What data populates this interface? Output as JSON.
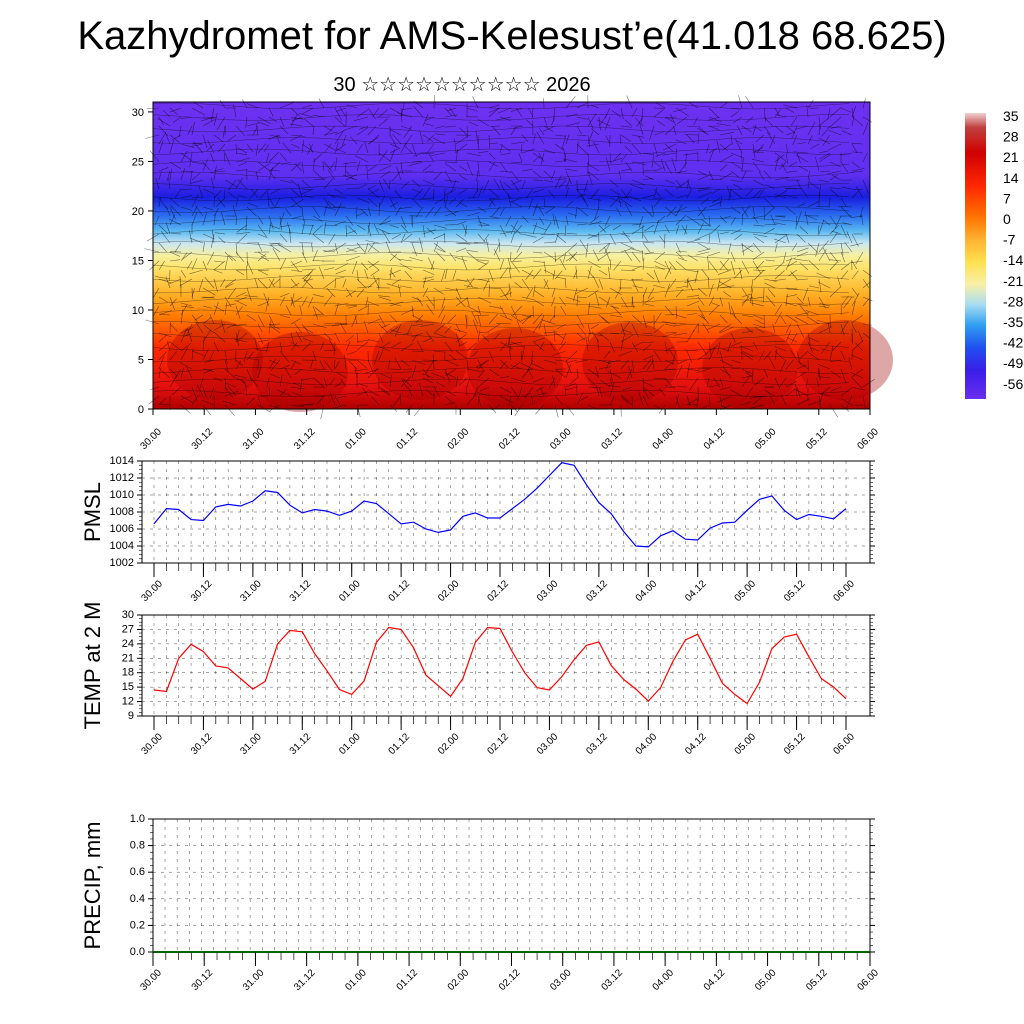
{
  "title": "Kazhydromet for AMS-Kelesust’e(41.018 68.625)",
  "subtitle": "30 ☆☆☆☆☆☆☆☆☆☆ 2026",
  "time_labels": [
    "30.00",
    "30.12",
    "31.00",
    "31.12",
    "01.00",
    "01.12",
    "02.00",
    "02.12",
    "03.00",
    "03.12",
    "04.00",
    "04.12",
    "05.00",
    "05.12",
    "06.00"
  ],
  "colors": {
    "pmsl": "#0000ff",
    "temp": "#ff0000",
    "precip": "#006400"
  },
  "chart_data": [
    {
      "type": "heatmap",
      "name": "vertical-section",
      "ylim": [
        0,
        31
      ],
      "yticks": [
        0,
        5,
        10,
        15,
        20,
        25,
        30
      ],
      "colorbar_labels": [
        "35",
        "28",
        "21",
        "14",
        "7",
        "0",
        "-7",
        "-14",
        "-21",
        "-28",
        "-35",
        "-42",
        "-49",
        "-56"
      ],
      "overlay": "wind vectors"
    },
    {
      "type": "line",
      "name": "pmsl",
      "ylabel": "PMSL",
      "ylim": [
        1002,
        1014
      ],
      "yticks": [
        1002,
        1004,
        1006,
        1008,
        1010,
        1012,
        1014
      ],
      "x_start": 0,
      "x_step": 0.25,
      "values": [
        1006.6,
        1008.4,
        1008.3,
        1007.1,
        1007.0,
        1008.6,
        1008.9,
        1008.7,
        1009.3,
        1010.5,
        1010.3,
        1008.8,
        1007.9,
        1008.3,
        1008.1,
        1007.6,
        1008.1,
        1009.3,
        1009.0,
        1007.8,
        1006.6,
        1006.8,
        1006.0,
        1005.6,
        1005.9,
        1007.5,
        1007.9,
        1007.3,
        1007.3,
        1008.4,
        1009.5,
        1010.8,
        1012.3,
        1013.8,
        1013.5,
        1011.2,
        1009.1,
        1007.8,
        1005.7,
        1004.0,
        1003.9,
        1005.2,
        1005.8,
        1004.8,
        1004.7,
        1006.1,
        1006.7,
        1006.8,
        1008.2,
        1009.5,
        1009.9,
        1008.2,
        1007.1,
        1007.7,
        1007.5,
        1007.2,
        1008.4
      ]
    },
    {
      "type": "line",
      "name": "temp",
      "ylabel": "TEMP at 2 M",
      "ylim": [
        9,
        30
      ],
      "yticks": [
        9,
        12,
        15,
        18,
        21,
        24,
        27,
        30
      ],
      "x_start": 0,
      "x_step": 0.25,
      "values": [
        14.4,
        14.1,
        21.0,
        23.9,
        22.4,
        19.4,
        19.0,
        16.8,
        14.6,
        16.2,
        24.0,
        26.8,
        26.5,
        22.0,
        18.4,
        14.5,
        13.5,
        16.3,
        24.3,
        27.4,
        27.0,
        23.2,
        17.5,
        15.3,
        13.1,
        16.8,
        24.3,
        27.4,
        27.2,
        22.3,
        18.0,
        14.9,
        14.4,
        17.2,
        20.7,
        23.7,
        24.4,
        19.5,
        16.6,
        14.6,
        12.1,
        14.9,
        20.4,
        24.8,
        26.0,
        21.0,
        15.8,
        13.5,
        11.6,
        16.0,
        23.0,
        25.4,
        26.0,
        21.3,
        16.8,
        15.0,
        12.6
      ]
    },
    {
      "type": "line",
      "name": "precip",
      "ylabel": "PRECIP, mm",
      "ylim": [
        0,
        1.0
      ],
      "yticks": [
        "0.0",
        "0.2",
        "0.4",
        "0.6",
        "0.8",
        "1.0"
      ],
      "values": [
        0.0,
        0.0
      ]
    }
  ]
}
